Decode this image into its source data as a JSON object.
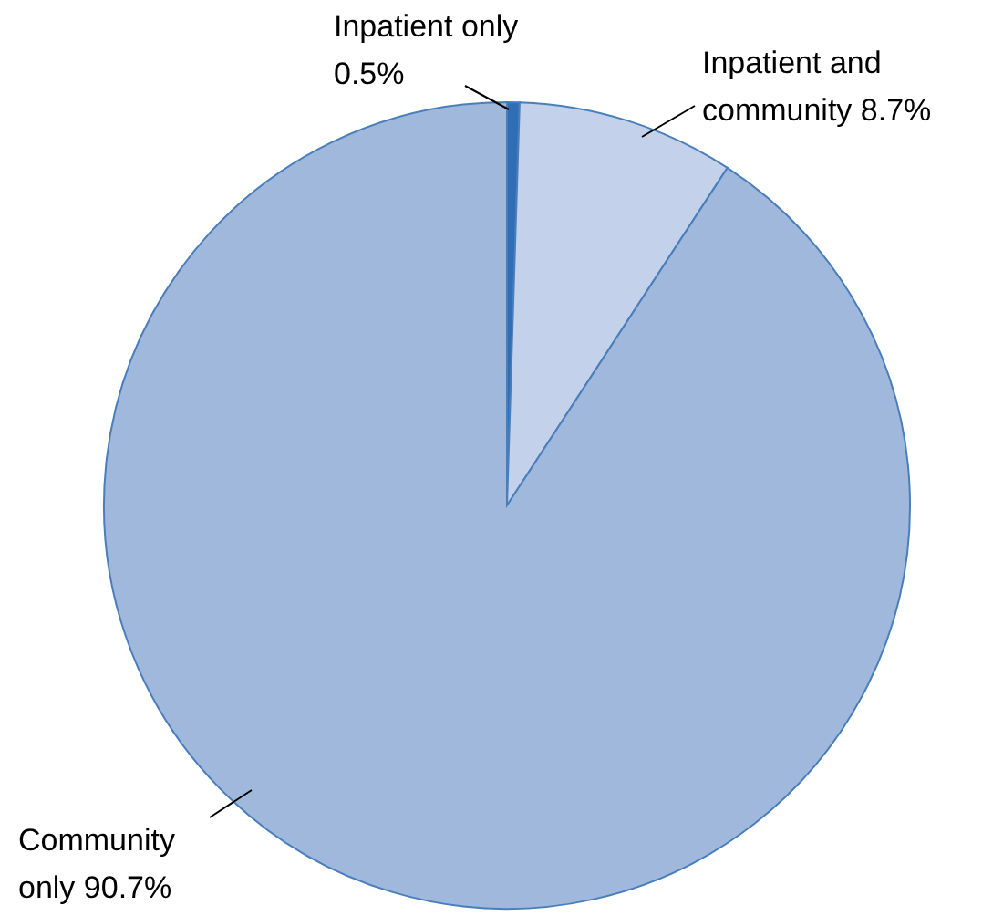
{
  "chart_data": {
    "type": "pie",
    "categories": [
      "Inpatient only",
      "Inpatient and community",
      "Community only"
    ],
    "values": [
      0.5,
      8.7,
      90.7
    ],
    "colors": [
      "#2f6eb5",
      "#c3d2ea",
      "#9fb8dc"
    ],
    "value_labels": [
      "0.5%",
      "8.7%",
      "90.7%"
    ]
  }
}
